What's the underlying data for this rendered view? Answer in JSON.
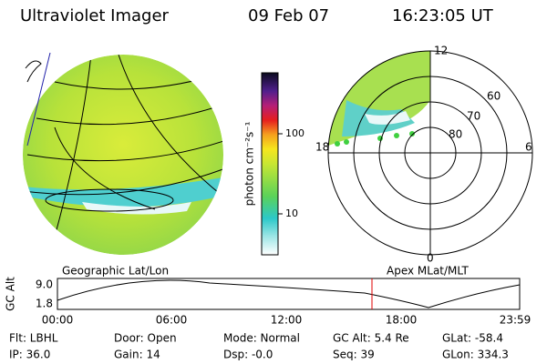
{
  "header": {
    "title": "Ultraviolet Imager",
    "date": "09 Feb 07",
    "time": "16:23:05 UT"
  },
  "colorbar": {
    "label": "photon cm⁻²s⁻¹",
    "ticks": [
      "100",
      "10"
    ]
  },
  "polar_plot": {
    "labels": [
      "12",
      "60",
      "70",
      "80",
      "18",
      "6",
      "0"
    ]
  },
  "altitude_plot": {
    "left_title": "Geographic Lat/Lon",
    "right_title": "Apex MLat/MLT",
    "ylabel": "GC Alt",
    "yticks": [
      "9.0",
      "1.8"
    ],
    "xticks": [
      "00:00",
      "06:00",
      "12:00",
      "18:00",
      "23:59"
    ]
  },
  "status": [
    [
      "Flt: LBHL",
      "Door: Open",
      "Mode: Normal",
      "GC Alt: 5.4 Re",
      "GLat: -58.4"
    ],
    [
      "IP: 36.0",
      "Gain: 14",
      "Dsp: -0.0",
      "Seq: 39",
      "GLon: 334.3"
    ]
  ]
}
